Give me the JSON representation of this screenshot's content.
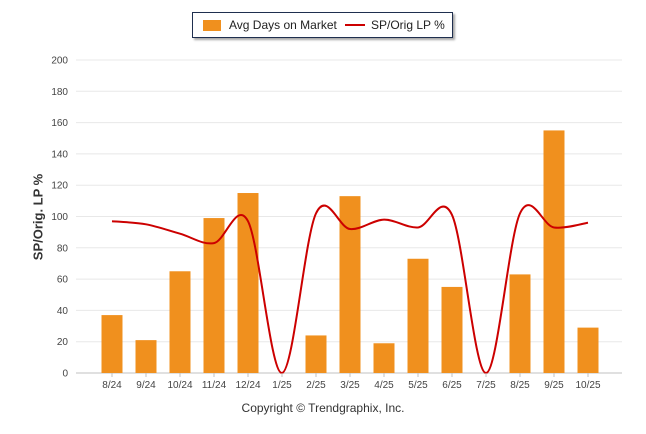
{
  "chart_data": {
    "type": "bar",
    "categories": [
      "8/24",
      "9/24",
      "10/24",
      "11/24",
      "12/24",
      "1/25",
      "2/25",
      "3/25",
      "4/25",
      "5/25",
      "6/25",
      "7/25",
      "8/25",
      "9/25",
      "10/25"
    ],
    "series": [
      {
        "name": "Avg Days on Market",
        "type": "bar",
        "values": [
          37,
          21,
          65,
          99,
          115,
          0,
          24,
          113,
          19,
          73,
          55,
          0,
          63,
          155,
          29
        ]
      },
      {
        "name": "SP/Orig LP %",
        "type": "line",
        "values": [
          97,
          95,
          89,
          83,
          97,
          0,
          102,
          92,
          98,
          93,
          101,
          0,
          102,
          93,
          96
        ]
      }
    ],
    "ylabel": "SP/Orig. LP %",
    "xlabel": "",
    "ylim": [
      0,
      200
    ],
    "yticks": [
      0,
      20,
      40,
      60,
      80,
      100,
      120,
      140,
      160,
      180,
      200
    ],
    "grid": true,
    "legend_position": "top-center",
    "colors": {
      "bar": "#f0901e",
      "line": "#cc0000",
      "grid": "#e8e8e8",
      "axis": "#c0c0c0"
    }
  },
  "footer": {
    "copyright": "Copyright © Trendgraphix, Inc."
  }
}
